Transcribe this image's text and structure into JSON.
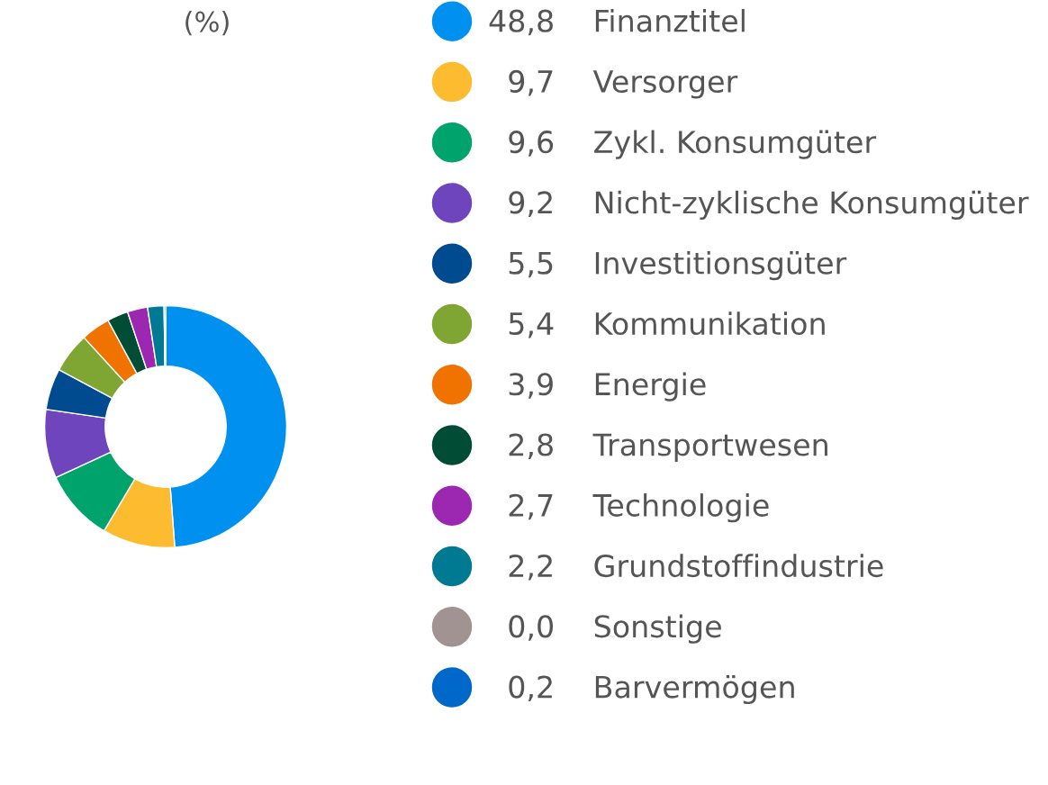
{
  "chart_data": {
    "type": "donut",
    "title": "(%)",
    "categories": [
      "Finanztitel",
      "Versorger",
      "Zykl. Konsumgüter",
      "Nicht-zyklische Konsumgüter",
      "Investitionsgüter",
      "Kommunikation",
      "Energie",
      "Transportwesen",
      "Technologie",
      "Grundstoffindustrie",
      "Sonstige",
      "Barvermögen"
    ],
    "values": [
      48.8,
      9.7,
      9.6,
      9.2,
      5.5,
      5.4,
      3.9,
      2.8,
      2.7,
      2.2,
      0.0,
      0.2
    ],
    "value_labels": [
      "48,8",
      "9,7",
      "9,6",
      "9,2",
      "5,5",
      "5,4",
      "3,9",
      "2,8",
      "2,7",
      "2,2",
      "0,0",
      "0,2"
    ],
    "colors": [
      "#0091f0",
      "#fdbb30",
      "#00a36c",
      "#6f45be",
      "#004a8f",
      "#7fa532",
      "#f07300",
      "#004c34",
      "#9c27b0",
      "#007a93",
      "#a09391",
      "#0068c9"
    ],
    "legend": "right"
  }
}
